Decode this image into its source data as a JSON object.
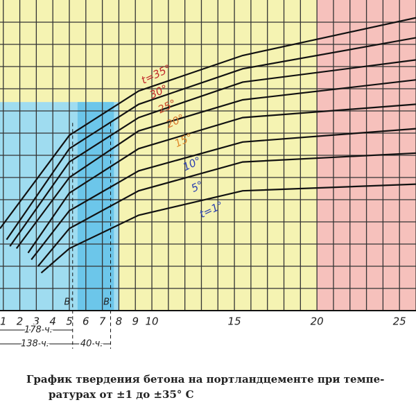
{
  "chart_data": {
    "type": "line",
    "caption": [
      "График твердения бетона на портландцементе при темпе-",
      "ратурах от ±1 до ±35° С"
    ],
    "xlim": [
      0.8,
      26
    ],
    "ylim": [
      0,
      14
    ],
    "xticks": [
      1,
      2,
      3,
      4,
      5,
      6,
      7,
      8,
      9,
      10,
      15,
      20,
      25
    ],
    "xgrid": [
      1,
      2,
      3,
      4,
      5,
      6,
      7,
      8,
      9,
      10,
      11,
      12,
      13,
      14,
      15,
      16,
      17,
      18,
      19,
      20,
      21,
      22,
      23,
      24,
      25,
      26
    ],
    "ygrid": [
      1,
      2,
      3,
      4,
      5,
      6,
      7,
      8,
      9,
      10,
      11,
      12,
      13
    ],
    "background": "#f5f3b2",
    "bands": [
      {
        "x": [
          0.8,
          8
        ],
        "y": [
          0,
          9.4
        ],
        "color": "#9fdcf0"
      },
      {
        "x": [
          5.5,
          7.7
        ],
        "y": [
          0,
          9.4
        ],
        "color": "#6cc6ea"
      },
      {
        "x": [
          20,
          26
        ],
        "y": [
          0,
          14
        ],
        "color": "#f6c1bc"
      }
    ],
    "ref_lines": [
      {
        "x": 5.2,
        "label": "В'"
      },
      {
        "x": 7.5,
        "label": "В"
      }
    ],
    "annotations": [
      "178 ч.",
      "138 ч.",
      "40 ч."
    ],
    "series": [
      {
        "name": "t=35°",
        "color": "#c0282a",
        "x": [
          0.8,
          5.0,
          9.2,
          15.5,
          26.0
        ],
        "values": [
          3.7,
          7.9,
          9.9,
          11.5,
          13.2
        ]
      },
      {
        "name": "30°",
        "color": "#c0282a",
        "x": [
          1.2,
          5.0,
          9.2,
          15.5,
          26.0
        ],
        "values": [
          3.2,
          7.3,
          9.3,
          10.9,
          12.3
        ]
      },
      {
        "name": "25°",
        "color": "#c84a2a",
        "x": [
          1.4,
          5.0,
          9.2,
          15.5,
          26.0
        ],
        "values": [
          2.9,
          6.7,
          8.7,
          10.3,
          11.3
        ]
      },
      {
        "name": "20°",
        "color": "#d8742a",
        "x": [
          1.8,
          5.0,
          9.2,
          15.5,
          26.0
        ],
        "values": [
          2.8,
          6.0,
          8.1,
          9.5,
          10.4
        ]
      },
      {
        "name": "15°",
        "color": "#e08a2a",
        "x": [
          2.5,
          5.0,
          9.2,
          15.5,
          26.0
        ],
        "values": [
          2.6,
          5.3,
          7.3,
          8.7,
          9.3
        ]
      },
      {
        "name": "10°",
        "color": "#2a3fb0",
        "x": [
          2.7,
          5.0,
          9.2,
          15.5,
          26.0
        ],
        "values": [
          2.3,
          4.5,
          6.3,
          7.6,
          8.2
        ]
      },
      {
        "name": "5°",
        "color": "#2a3fb0",
        "x": [
          3.1,
          5.0,
          9.2,
          15.5,
          26.0
        ],
        "values": [
          2.0,
          3.7,
          5.4,
          6.7,
          7.1
        ]
      },
      {
        "name": "t=1°",
        "color": "#2a3fb0",
        "x": [
          3.3,
          5.0,
          9.2,
          15.5,
          26.0
        ],
        "values": [
          1.7,
          2.8,
          4.3,
          5.4,
          5.7
        ]
      }
    ]
  }
}
